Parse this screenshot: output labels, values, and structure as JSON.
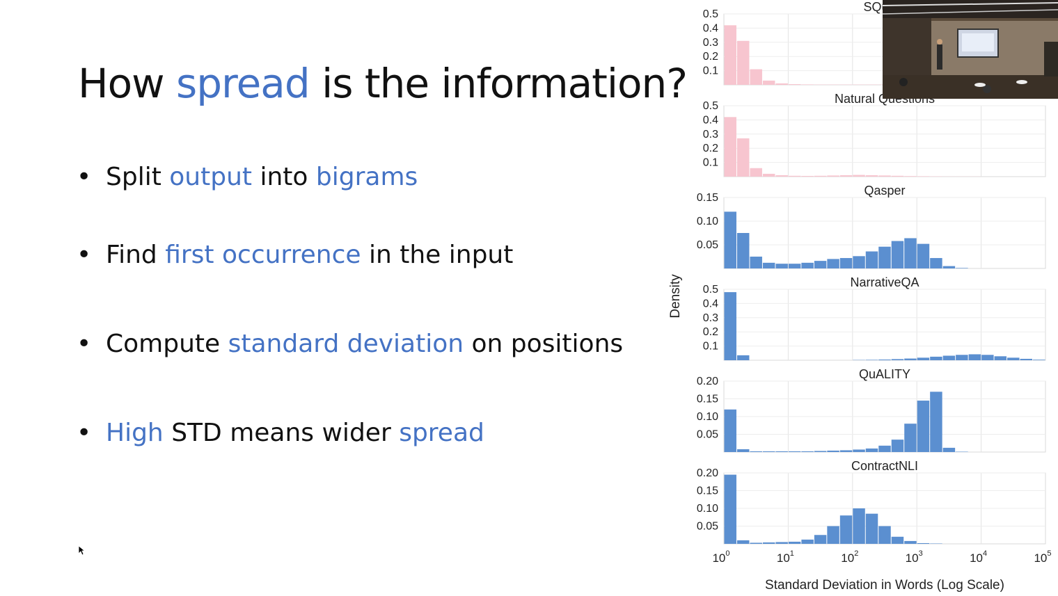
{
  "slide": {
    "title_parts": [
      "How ",
      "spread",
      " is the information?"
    ],
    "bullets": [
      [
        "Split ",
        "output",
        " into ",
        "bigrams"
      ],
      [
        "Find ",
        "first occurrence",
        " in the input"
      ],
      [
        "Compute ",
        "standard deviation",
        " on positions"
      ],
      [
        "High",
        " STD means wider ",
        "spread"
      ]
    ],
    "highlight_color": "#4472c4"
  },
  "chart_data": {
    "type": "bar",
    "subtype": "histogram-small-multiples",
    "ylabel": "Density",
    "xlabel": "Standard Deviation in Words (Log Scale)",
    "xscale": "log",
    "xlim": [
      1,
      100000
    ],
    "x_tick_labels": [
      "10^0",
      "10^1",
      "10^2",
      "10^3",
      "10^4",
      "10^5"
    ],
    "grid": true,
    "bin_edges_log10": [
      0,
      0.2,
      0.4,
      0.6,
      0.8,
      1.0,
      1.2,
      1.4,
      1.6,
      1.8,
      2.0,
      2.2,
      2.4,
      2.6,
      2.8,
      3.0,
      3.2,
      3.4,
      3.6,
      3.8,
      4.0,
      4.2,
      4.4,
      4.6,
      4.8,
      5.0
    ],
    "panels": [
      {
        "title": "SQuAD",
        "color": "#f7c5cf",
        "ylim": [
          0,
          0.5
        ],
        "yticks": [
          "0.1",
          "0.2",
          "0.3",
          "0.4",
          "0.5"
        ],
        "y_tick_values": [
          0.1,
          0.2,
          0.3,
          0.4,
          0.5
        ],
        "values": [
          0.42,
          0.31,
          0.11,
          0.03,
          0.01,
          0.005,
          0.003,
          0.002,
          0.002,
          0.002,
          0.002,
          0.002,
          0.002,
          0.002,
          0.002,
          0.002,
          0.001,
          0.001,
          0.001,
          0.001,
          0.0,
          0.0,
          0.0,
          0.0,
          0.0
        ]
      },
      {
        "title": "Natural Questions",
        "color": "#f7c5cf",
        "ylim": [
          0,
          0.5
        ],
        "yticks": [
          "0.1",
          "0.2",
          "0.3",
          "0.4",
          "0.5"
        ],
        "y_tick_values": [
          0.1,
          0.2,
          0.3,
          0.4,
          0.5
        ],
        "values": [
          0.42,
          0.27,
          0.06,
          0.02,
          0.01,
          0.006,
          0.005,
          0.006,
          0.008,
          0.01,
          0.012,
          0.01,
          0.008,
          0.006,
          0.004,
          0.003,
          0.002,
          0.001,
          0.001,
          0.001,
          0.0,
          0.0,
          0.0,
          0.0,
          0.0
        ]
      },
      {
        "title": "Qasper",
        "color": "#5b8fd0",
        "ylim": [
          0,
          0.15
        ],
        "yticks": [
          "0.05",
          "0.10",
          "0.15"
        ],
        "y_tick_values": [
          0.05,
          0.1,
          0.15
        ],
        "values": [
          0.12,
          0.075,
          0.025,
          0.012,
          0.01,
          0.01,
          0.012,
          0.016,
          0.02,
          0.022,
          0.026,
          0.036,
          0.046,
          0.058,
          0.064,
          0.052,
          0.022,
          0.005,
          0.001,
          0.0,
          0.0,
          0.0,
          0.0,
          0.0,
          0.0
        ]
      },
      {
        "title": "NarrativeQA",
        "color": "#5b8fd0",
        "ylim": [
          0,
          0.5
        ],
        "yticks": [
          "0.1",
          "0.2",
          "0.3",
          "0.4",
          "0.5"
        ],
        "y_tick_values": [
          0.1,
          0.2,
          0.3,
          0.4,
          0.5
        ],
        "values": [
          0.48,
          0.035,
          0.0,
          0.0,
          0.0,
          0.0,
          0.0,
          0.0,
          0.0,
          0.0,
          0.002,
          0.003,
          0.005,
          0.008,
          0.012,
          0.018,
          0.025,
          0.032,
          0.038,
          0.042,
          0.038,
          0.028,
          0.018,
          0.01,
          0.004
        ]
      },
      {
        "title": "QuALITY",
        "color": "#5b8fd0",
        "ylim": [
          0,
          0.2
        ],
        "yticks": [
          "0.05",
          "0.10",
          "0.15",
          "0.20"
        ],
        "y_tick_values": [
          0.05,
          0.1,
          0.15,
          0.2
        ],
        "values": [
          0.12,
          0.008,
          0.002,
          0.002,
          0.002,
          0.002,
          0.002,
          0.003,
          0.004,
          0.005,
          0.007,
          0.01,
          0.018,
          0.035,
          0.08,
          0.145,
          0.17,
          0.012,
          0.001,
          0.0,
          0.0,
          0.0,
          0.0,
          0.0,
          0.0
        ]
      },
      {
        "title": "ContractNLI",
        "color": "#5b8fd0",
        "ylim": [
          0,
          0.2
        ],
        "yticks": [
          "0.05",
          "0.10",
          "0.15",
          "0.20"
        ],
        "y_tick_values": [
          0.05,
          0.1,
          0.15,
          0.2
        ],
        "values": [
          0.195,
          0.01,
          0.003,
          0.004,
          0.005,
          0.006,
          0.012,
          0.025,
          0.05,
          0.08,
          0.1,
          0.085,
          0.05,
          0.02,
          0.008,
          0.002,
          0.001,
          0.0,
          0.0,
          0.0,
          0.0,
          0.0,
          0.0,
          0.0,
          0.0
        ]
      }
    ]
  }
}
